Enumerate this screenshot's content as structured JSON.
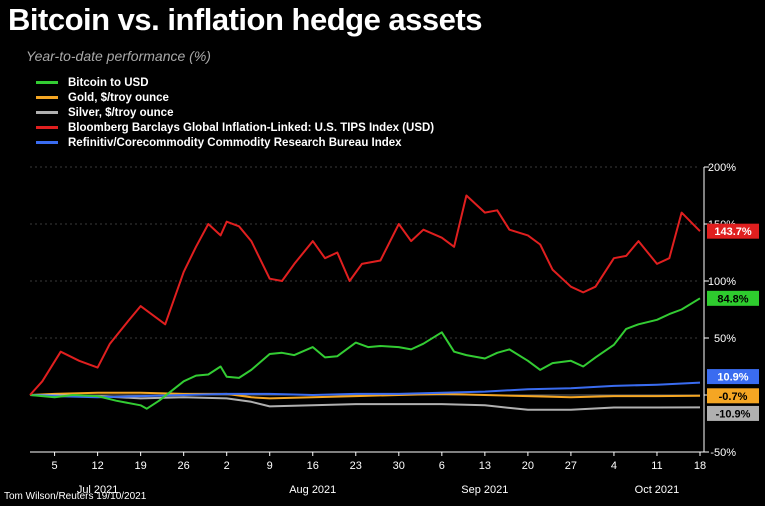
{
  "title": "Bitcoin vs. inflation hedge assets",
  "subtitle": "Year-to-date performance (%)",
  "credit": "Tom Wilson/Reuters 19/10/2021",
  "chart_data": {
    "type": "line",
    "ylim": [
      -50,
      200
    ],
    "yticks": [
      "200%",
      "150%",
      "100%",
      "50%",
      "0%",
      "-50%"
    ],
    "ytick_values": [
      200,
      150,
      100,
      50,
      0,
      -50
    ],
    "xticks": [
      "5",
      "12",
      "19",
      "26",
      "2",
      "9",
      "16",
      "23",
      "30",
      "6",
      "13",
      "20",
      "27",
      "4",
      "11",
      "18"
    ],
    "xtick_dates": [
      "2021-07-05",
      "2021-07-12",
      "2021-07-19",
      "2021-07-26",
      "2021-08-02",
      "2021-08-09",
      "2021-08-16",
      "2021-08-23",
      "2021-08-30",
      "2021-09-06",
      "2021-09-13",
      "2021-09-20",
      "2021-09-27",
      "2021-10-04",
      "2021-10-11",
      "2021-10-18"
    ],
    "months": [
      {
        "label": "Jul 2021",
        "date": "2021-07-12"
      },
      {
        "label": "Aug 2021",
        "date": "2021-08-16"
      },
      {
        "label": "Sep 2021",
        "date": "2021-09-13"
      },
      {
        "label": "Oct 2021",
        "date": "2021-10-11"
      }
    ],
    "grid": true,
    "legend_position": "top-left",
    "series": [
      {
        "name": "Bitcoin to USD",
        "color": "#33cc33",
        "end_label": "84.8%",
        "points": [
          [
            "2021-07-01",
            0
          ],
          [
            "2021-07-05",
            -2
          ],
          [
            "2021-07-08",
            0
          ],
          [
            "2021-07-12",
            -1
          ],
          [
            "2021-07-15",
            -5
          ],
          [
            "2021-07-19",
            -9
          ],
          [
            "2021-07-20",
            -12
          ],
          [
            "2021-07-22",
            -5
          ],
          [
            "2021-07-26",
            12
          ],
          [
            "2021-07-28",
            17
          ],
          [
            "2021-07-30",
            18
          ],
          [
            "2021-08-01",
            25
          ],
          [
            "2021-08-02",
            16
          ],
          [
            "2021-08-04",
            15
          ],
          [
            "2021-08-06",
            22
          ],
          [
            "2021-08-09",
            36
          ],
          [
            "2021-08-11",
            37
          ],
          [
            "2021-08-13",
            35
          ],
          [
            "2021-08-16",
            42
          ],
          [
            "2021-08-18",
            33
          ],
          [
            "2021-08-20",
            34
          ],
          [
            "2021-08-23",
            46
          ],
          [
            "2021-08-25",
            42
          ],
          [
            "2021-08-27",
            43
          ],
          [
            "2021-08-30",
            42
          ],
          [
            "2021-09-01",
            40
          ],
          [
            "2021-09-03",
            45
          ],
          [
            "2021-09-06",
            55
          ],
          [
            "2021-09-08",
            38
          ],
          [
            "2021-09-10",
            35
          ],
          [
            "2021-09-13",
            32
          ],
          [
            "2021-09-15",
            37
          ],
          [
            "2021-09-17",
            40
          ],
          [
            "2021-09-20",
            30
          ],
          [
            "2021-09-22",
            22
          ],
          [
            "2021-09-24",
            28
          ],
          [
            "2021-09-27",
            30
          ],
          [
            "2021-09-29",
            25
          ],
          [
            "2021-10-01",
            33
          ],
          [
            "2021-10-04",
            44
          ],
          [
            "2021-10-06",
            58
          ],
          [
            "2021-10-08",
            62
          ],
          [
            "2021-10-11",
            66
          ],
          [
            "2021-10-13",
            71
          ],
          [
            "2021-10-15",
            75
          ],
          [
            "2021-10-18",
            84.8
          ]
        ]
      },
      {
        "name": "Gold, $/troy ounce",
        "color": "#f5a623",
        "end_label": "-0.7%",
        "points": [
          [
            "2021-07-01",
            0
          ],
          [
            "2021-07-05",
            1
          ],
          [
            "2021-07-12",
            2
          ],
          [
            "2021-07-19",
            2
          ],
          [
            "2021-07-26",
            1
          ],
          [
            "2021-08-02",
            1
          ],
          [
            "2021-08-06",
            -2
          ],
          [
            "2021-08-09",
            -3
          ],
          [
            "2021-08-16",
            -2
          ],
          [
            "2021-08-23",
            -1
          ],
          [
            "2021-08-30",
            0
          ],
          [
            "2021-09-06",
            1
          ],
          [
            "2021-09-13",
            0
          ],
          [
            "2021-09-20",
            -1
          ],
          [
            "2021-09-27",
            -2
          ],
          [
            "2021-10-04",
            -1
          ],
          [
            "2021-10-11",
            -1
          ],
          [
            "2021-10-18",
            -0.7
          ]
        ]
      },
      {
        "name": "Silver, $/troy ounce",
        "color": "#b0b0b0",
        "end_label": "-10.9%",
        "points": [
          [
            "2021-07-01",
            0
          ],
          [
            "2021-07-05",
            0
          ],
          [
            "2021-07-12",
            -1
          ],
          [
            "2021-07-19",
            -3
          ],
          [
            "2021-07-26",
            -2
          ],
          [
            "2021-08-02",
            -3
          ],
          [
            "2021-08-06",
            -6
          ],
          [
            "2021-08-09",
            -10
          ],
          [
            "2021-08-16",
            -9
          ],
          [
            "2021-08-23",
            -8
          ],
          [
            "2021-08-30",
            -8
          ],
          [
            "2021-09-06",
            -8
          ],
          [
            "2021-09-13",
            -9
          ],
          [
            "2021-09-20",
            -13
          ],
          [
            "2021-09-27",
            -13
          ],
          [
            "2021-10-04",
            -11
          ],
          [
            "2021-10-11",
            -11
          ],
          [
            "2021-10-18",
            -10.9
          ]
        ]
      },
      {
        "name": "Bloomberg Barclays Global Inflation-Linked: U.S. TIPS Index (USD)",
        "color": "#e01f1f",
        "end_label": "143.7%",
        "points": [
          [
            "2021-07-01",
            0
          ],
          [
            "2021-07-03",
            12
          ],
          [
            "2021-07-06",
            38
          ],
          [
            "2021-07-09",
            30
          ],
          [
            "2021-07-12",
            24
          ],
          [
            "2021-07-14",
            45
          ],
          [
            "2021-07-17",
            65
          ],
          [
            "2021-07-19",
            78
          ],
          [
            "2021-07-21",
            70
          ],
          [
            "2021-07-23",
            62
          ],
          [
            "2021-07-26",
            108
          ],
          [
            "2021-07-28",
            130
          ],
          [
            "2021-07-30",
            150
          ],
          [
            "2021-08-01",
            140
          ],
          [
            "2021-08-02",
            152
          ],
          [
            "2021-08-04",
            148
          ],
          [
            "2021-08-06",
            135
          ],
          [
            "2021-08-09",
            102
          ],
          [
            "2021-08-11",
            100
          ],
          [
            "2021-08-13",
            115
          ],
          [
            "2021-08-16",
            135
          ],
          [
            "2021-08-18",
            120
          ],
          [
            "2021-08-20",
            125
          ],
          [
            "2021-08-22",
            100
          ],
          [
            "2021-08-24",
            115
          ],
          [
            "2021-08-27",
            118
          ],
          [
            "2021-08-30",
            150
          ],
          [
            "2021-09-01",
            135
          ],
          [
            "2021-09-03",
            145
          ],
          [
            "2021-09-06",
            138
          ],
          [
            "2021-09-08",
            130
          ],
          [
            "2021-09-10",
            175
          ],
          [
            "2021-09-13",
            160
          ],
          [
            "2021-09-15",
            162
          ],
          [
            "2021-09-17",
            145
          ],
          [
            "2021-09-20",
            140
          ],
          [
            "2021-09-22",
            132
          ],
          [
            "2021-09-24",
            110
          ],
          [
            "2021-09-27",
            95
          ],
          [
            "2021-09-29",
            90
          ],
          [
            "2021-10-01",
            95
          ],
          [
            "2021-10-04",
            120
          ],
          [
            "2021-10-06",
            122
          ],
          [
            "2021-10-08",
            135
          ],
          [
            "2021-10-11",
            115
          ],
          [
            "2021-10-13",
            120
          ],
          [
            "2021-10-15",
            160
          ],
          [
            "2021-10-18",
            143.7
          ]
        ]
      },
      {
        "name": "Refinitiv/Corecommodity Commodity Research Bureau Index",
        "color": "#3a6cf0",
        "end_label": "10.9%",
        "points": [
          [
            "2021-07-01",
            0
          ],
          [
            "2021-07-05",
            -1
          ],
          [
            "2021-07-12",
            -2
          ],
          [
            "2021-07-19",
            -1
          ],
          [
            "2021-07-26",
            0
          ],
          [
            "2021-08-02",
            1
          ],
          [
            "2021-08-09",
            1
          ],
          [
            "2021-08-16",
            0
          ],
          [
            "2021-08-23",
            1
          ],
          [
            "2021-08-30",
            1
          ],
          [
            "2021-09-06",
            2
          ],
          [
            "2021-09-13",
            3
          ],
          [
            "2021-09-20",
            5
          ],
          [
            "2021-09-27",
            6
          ],
          [
            "2021-10-04",
            8
          ],
          [
            "2021-10-11",
            9
          ],
          [
            "2021-10-18",
            10.9
          ]
        ]
      }
    ],
    "label_colors": {
      "Bitcoin to USD": {
        "bg": "#2ecc2e",
        "fg": "#000000"
      },
      "Gold, $/troy ounce": {
        "bg": "#f5a623",
        "fg": "#000000"
      },
      "Silver, $/troy ounce": {
        "bg": "#b0b0b0",
        "fg": "#000000"
      },
      "Bloomberg Barclays Global Inflation-Linked: U.S. TIPS Index (USD)": {
        "bg": "#e01f1f",
        "fg": "#ffffff"
      },
      "Refinitiv/Corecommodity Commodity Research Bureau Index": {
        "bg": "#3a6cf0",
        "fg": "#ffffff"
      }
    }
  }
}
